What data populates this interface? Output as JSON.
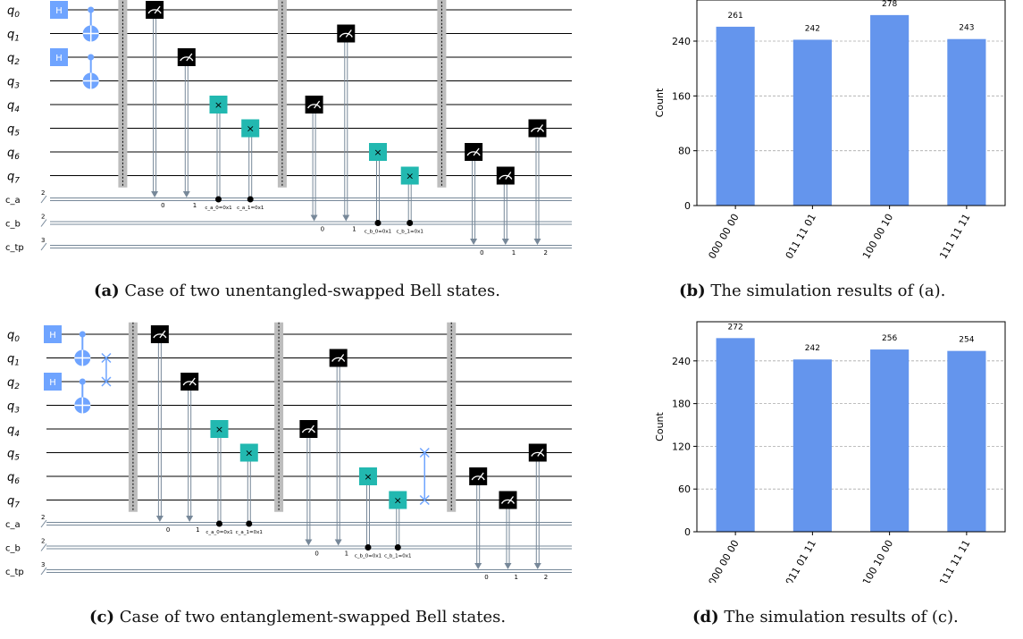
{
  "circuits": [
    {
      "id": "a",
      "qubits": [
        "q0",
        "q1",
        "q2",
        "q3",
        "q4",
        "q5",
        "q6",
        "q7"
      ],
      "cregs": [
        {
          "name": "c_a",
          "size": "2"
        },
        {
          "name": "c_b",
          "size": "2"
        },
        {
          "name": "c_tp",
          "size": "3"
        }
      ],
      "gates": [
        {
          "type": "H",
          "q": 0,
          "col": 0
        },
        {
          "type": "H",
          "q": 2,
          "col": 0
        },
        {
          "type": "CX",
          "c": 0,
          "t": 1,
          "col": 1
        },
        {
          "type": "CX",
          "c": 2,
          "t": 3,
          "col": 1
        },
        {
          "type": "barrier",
          "col": 2
        },
        {
          "type": "measure",
          "q": 0,
          "creg": 0,
          "bit": "0",
          "col": 3
        },
        {
          "type": "measure",
          "q": 2,
          "creg": 0,
          "bit": "1",
          "col": 4
        },
        {
          "type": "cx_gate",
          "q": 4,
          "creg": 0,
          "label": "c_a_0=0x1",
          "col": 5
        },
        {
          "type": "cx_gate",
          "q": 5,
          "creg": 0,
          "label": "c_a_1=0x1",
          "col": 6
        },
        {
          "type": "barrier",
          "col": 7
        },
        {
          "type": "measure",
          "q": 4,
          "creg": 1,
          "bit": "0",
          "col": 8
        },
        {
          "type": "measure",
          "q": 1,
          "creg": 1,
          "bit": "1",
          "col": 9
        },
        {
          "type": "cx_gate",
          "q": 6,
          "creg": 1,
          "label": "c_b_0=0x1",
          "col": 10
        },
        {
          "type": "cx_gate",
          "q": 7,
          "creg": 1,
          "label": "c_b_1=0x1",
          "col": 11
        },
        {
          "type": "barrier",
          "col": 12
        },
        {
          "type": "measure",
          "q": 6,
          "creg": 2,
          "bit": "0",
          "col": 13
        },
        {
          "type": "measure",
          "q": 7,
          "creg": 2,
          "bit": "1",
          "col": 14
        },
        {
          "type": "measure",
          "q": 5,
          "creg": 2,
          "bit": "2",
          "col": 15
        }
      ],
      "caption_tag": "(a)",
      "caption": " Case of two unentangled-swapped Bell states."
    },
    {
      "id": "c",
      "qubits": [
        "q0",
        "q1",
        "q2",
        "q3",
        "q4",
        "q5",
        "q6",
        "q7"
      ],
      "cregs": [
        {
          "name": "c_a",
          "size": "2"
        },
        {
          "name": "c_b",
          "size": "2"
        },
        {
          "name": "c_tp",
          "size": "3"
        }
      ],
      "gates": [
        {
          "type": "H",
          "q": 0,
          "col": 0
        },
        {
          "type": "H",
          "q": 2,
          "col": 0
        },
        {
          "type": "CX",
          "c": 0,
          "t": 1,
          "col": 1
        },
        {
          "type": "CX",
          "c": 2,
          "t": 3,
          "col": 1
        },
        {
          "type": "swap",
          "a": 1,
          "b": 2,
          "col": 1.8
        },
        {
          "type": "barrier",
          "col": 2.7
        },
        {
          "type": "measure",
          "q": 0,
          "creg": 0,
          "bit": "0",
          "col": 3.6
        },
        {
          "type": "measure",
          "q": 2,
          "creg": 0,
          "bit": "1",
          "col": 4.6
        },
        {
          "type": "cx_gate",
          "q": 4,
          "creg": 0,
          "label": "c_a_0=0x1",
          "col": 5.6
        },
        {
          "type": "cx_gate",
          "q": 5,
          "creg": 0,
          "label": "c_a_1=0x1",
          "col": 6.6
        },
        {
          "type": "barrier",
          "col": 7.6
        },
        {
          "type": "measure",
          "q": 4,
          "creg": 1,
          "bit": "0",
          "col": 8.6
        },
        {
          "type": "measure",
          "q": 1,
          "creg": 1,
          "bit": "1",
          "col": 9.6
        },
        {
          "type": "cx_gate",
          "q": 6,
          "creg": 1,
          "label": "c_b_0=0x1",
          "col": 10.6
        },
        {
          "type": "cx_gate",
          "q": 7,
          "creg": 1,
          "label": "c_b_1=0x1",
          "col": 11.6
        },
        {
          "type": "swap",
          "a": 5,
          "b": 7,
          "col": 12.5
        },
        {
          "type": "barrier",
          "col": 13.4
        },
        {
          "type": "measure",
          "q": 6,
          "creg": 2,
          "bit": "0",
          "col": 14.3
        },
        {
          "type": "measure",
          "q": 7,
          "creg": 2,
          "bit": "1",
          "col": 15.3
        },
        {
          "type": "measure",
          "q": 5,
          "creg": 2,
          "bit": "2",
          "col": 16.3
        }
      ],
      "caption_tag": "(c)",
      "caption": " Case of two entanglement-swapped Bell states."
    }
  ],
  "chart_data": [
    {
      "type": "bar",
      "id": "b",
      "categories": [
        "000 00 00",
        "011 11 01",
        "100 00 10",
        "111 11 11"
      ],
      "values": [
        261,
        242,
        278,
        243
      ],
      "ylabel": "Count",
      "yticks": [
        0,
        80,
        160,
        240
      ],
      "ylim": [
        0,
        300
      ],
      "grid": true,
      "bar_color": "#6495ED",
      "caption_tag": "(b)",
      "caption": " The simulation results of (a)."
    },
    {
      "type": "bar",
      "id": "d",
      "categories": [
        "000 00 00",
        "011 01 11",
        "100 10 00",
        "111 11 11"
      ],
      "values": [
        272,
        242,
        256,
        254
      ],
      "ylabel": "Count",
      "yticks": [
        0,
        60,
        120,
        180,
        240
      ],
      "ylim": [
        0,
        295
      ],
      "grid": true,
      "bar_color": "#6495ED",
      "caption_tag": "(d)",
      "caption": " The simulation results of (c)."
    }
  ],
  "colors": {
    "h_gate": "#6fa4ff",
    "cx": "#6fa4ff",
    "cond_x": "#22b8b0",
    "measure": "#000000",
    "barrier": "#bdbdbd",
    "classical": "#778899"
  }
}
